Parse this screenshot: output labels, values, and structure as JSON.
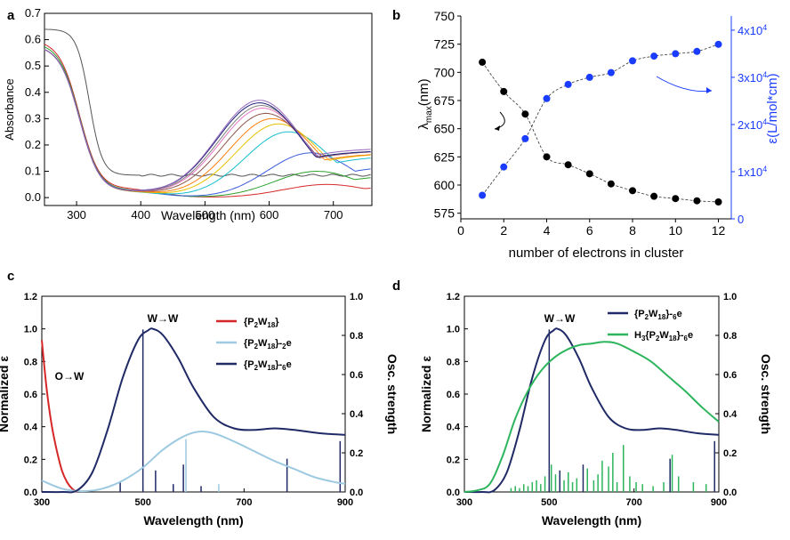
{
  "chart_data": [
    {
      "panel": "a",
      "type": "line",
      "xlabel": "Wavelength (nm)",
      "ylabel": "Absorbance",
      "xlim": [
        250,
        760
      ],
      "ylim": [
        -0.03,
        0.7
      ],
      "xticks": [
        300,
        400,
        500,
        600,
        700
      ],
      "yticks": [
        0.0,
        0.1,
        0.2,
        0.3,
        0.4,
        0.5,
        0.6,
        0.7
      ],
      "ytick_labels": [
        "0.0",
        "0.1",
        "0.2",
        "0.3",
        "0.4",
        "0.5",
        "0.6",
        "0.7"
      ],
      "grid": false,
      "series": [
        {
          "color": "#555555",
          "start": 0.64,
          "flat": 0.085,
          "peak": 0.0,
          "peak_x": 600,
          "long": 0.0
        },
        {
          "color": "#d62728",
          "start": 0.6,
          "flat": 0.06,
          "peak": 0.05,
          "peak_x": 690,
          "long": 0.05
        },
        {
          "color": "#2ca02c",
          "start": 0.59,
          "flat": 0.05,
          "peak": 0.1,
          "peak_x": 675,
          "long": 0.1
        },
        {
          "color": "#3b5bdb",
          "start": 0.58,
          "flat": 0.045,
          "peak": 0.17,
          "peak_x": 665,
          "long": 0.14
        },
        {
          "color": "#17becf",
          "start": 0.58,
          "flat": 0.04,
          "peak": 0.25,
          "peak_x": 630,
          "long": 0.18
        },
        {
          "color": "#e6c200",
          "start": 0.58,
          "flat": 0.04,
          "peak": 0.28,
          "peak_x": 615,
          "long": 0.19
        },
        {
          "color": "#ff7f0e",
          "start": 0.58,
          "flat": 0.04,
          "peak": 0.3,
          "peak_x": 605,
          "long": 0.19
        },
        {
          "color": "#8c564b",
          "start": 0.58,
          "flat": 0.04,
          "peak": 0.32,
          "peak_x": 595,
          "long": 0.2
        },
        {
          "color": "#e377c2",
          "start": 0.58,
          "flat": 0.04,
          "peak": 0.34,
          "peak_x": 590,
          "long": 0.2
        },
        {
          "color": "#7f7f7f",
          "start": 0.58,
          "flat": 0.04,
          "peak": 0.35,
          "peak_x": 588,
          "long": 0.2
        },
        {
          "color": "#1f1f7a",
          "start": 0.58,
          "flat": 0.04,
          "peak": 0.36,
          "peak_x": 585,
          "long": 0.2
        },
        {
          "color": "#9467bd",
          "start": 0.58,
          "flat": 0.04,
          "peak": 0.37,
          "peak_x": 585,
          "long": 0.21
        }
      ]
    },
    {
      "panel": "b",
      "type": "scatter",
      "xlabel": "number of electrons in cluster",
      "ylabel_left": "λmax(nm)",
      "ylabel_right": "ε(L/mol*cm)",
      "xlim": [
        0,
        12.6
      ],
      "ylim_left": [
        570,
        750
      ],
      "ylim_right": [
        0,
        43000
      ],
      "xticks": [
        0,
        2,
        4,
        6,
        8,
        10,
        12
      ],
      "yticks_left": [
        575,
        600,
        625,
        650,
        675,
        700,
        725,
        750
      ],
      "yticks_right": [
        0,
        10000,
        20000,
        30000,
        40000
      ],
      "ytick_labels_right": [
        "0",
        "1x10^4",
        "2x10^4",
        "3x10^4",
        "4x10^4"
      ],
      "series": [
        {
          "axis": "left",
          "color": "#000000",
          "x": [
            1,
            2,
            3,
            4,
            5,
            6,
            7,
            8,
            9,
            10,
            11,
            12
          ],
          "y": [
            709,
            683,
            663,
            625,
            618,
            610,
            601,
            595,
            590,
            588,
            586,
            585
          ]
        },
        {
          "axis": "right",
          "color": "#1a3cff",
          "x": [
            1,
            2,
            3,
            4,
            5,
            6,
            7,
            8,
            9,
            10,
            11,
            12
          ],
          "y": [
            5000,
            11000,
            17000,
            25500,
            28500,
            30000,
            31000,
            33500,
            34500,
            35000,
            35500,
            37000
          ]
        }
      ]
    },
    {
      "panel": "c",
      "type": "line",
      "xlabel": "Wavelength (nm)",
      "ylabel_left": "Normalized ε",
      "ylabel_right": "Osc. strength",
      "xlim": [
        300,
        900
      ],
      "ylim_left": [
        0,
        1.2
      ],
      "ylim_right": [
        0,
        1.0
      ],
      "xticks": [
        300,
        500,
        700,
        900
      ],
      "yticks_left": [
        0.0,
        0.2,
        0.4,
        0.6,
        0.8,
        1.0,
        1.2
      ],
      "yticks_right": [
        0.0,
        0.2,
        0.4,
        0.6,
        0.8,
        1.0
      ],
      "annotations": [
        "W→W",
        "O→W"
      ],
      "legend": [
        {
          "label": "{P2W18}",
          "color": "#d62728"
        },
        {
          "label": "{P2W18}-2e",
          "color": "#9ecae1"
        },
        {
          "label": "{P2W18}-6e",
          "color": "#1f2a66"
        }
      ],
      "series": [
        {
          "name": "{P2W18}",
          "color": "#d62728",
          "x": [
            300,
            310,
            320,
            330,
            340,
            350,
            360,
            370
          ],
          "y": [
            0.93,
            0.62,
            0.4,
            0.25,
            0.13,
            0.06,
            0.02,
            0.0
          ]
        },
        {
          "name": "{P2W18}-2e",
          "color": "#9ecae1",
          "x": [
            300,
            340,
            380,
            420,
            460,
            500,
            540,
            580,
            610,
            640,
            680,
            720,
            760,
            800,
            840,
            880,
            900
          ],
          "y": [
            0.07,
            0.02,
            0.005,
            0.02,
            0.07,
            0.15,
            0.26,
            0.34,
            0.37,
            0.36,
            0.31,
            0.25,
            0.19,
            0.14,
            0.09,
            0.06,
            0.05
          ]
        },
        {
          "name": "{P2W18}-6e",
          "color": "#1f2a66",
          "x": [
            300,
            340,
            370,
            400,
            430,
            460,
            490,
            510,
            520,
            540,
            570,
            600,
            640,
            680,
            720,
            760,
            800,
            850,
            900
          ],
          "y": [
            0.0,
            0.0,
            0.01,
            0.12,
            0.38,
            0.7,
            0.93,
            0.99,
            1.0,
            0.96,
            0.82,
            0.64,
            0.46,
            0.39,
            0.38,
            0.39,
            0.38,
            0.36,
            0.35
          ]
        }
      ],
      "osc_bars": [
        {
          "x": 455,
          "h": 0.05,
          "color": "#1f2a66"
        },
        {
          "x": 500,
          "h": 0.83,
          "color": "#1f2a66"
        },
        {
          "x": 525,
          "h": 0.11,
          "color": "#1f2a66"
        },
        {
          "x": 560,
          "h": 0.04,
          "color": "#1f2a66"
        },
        {
          "x": 580,
          "h": 0.14,
          "color": "#1f2a66"
        },
        {
          "x": 585,
          "h": 0.27,
          "color": "#9ecae1"
        },
        {
          "x": 615,
          "h": 0.03,
          "color": "#1f2a66"
        },
        {
          "x": 650,
          "h": 0.04,
          "color": "#9ecae1"
        },
        {
          "x": 785,
          "h": 0.17,
          "color": "#1f2a66"
        },
        {
          "x": 890,
          "h": 0.26,
          "color": "#1f2a66"
        }
      ]
    },
    {
      "panel": "d",
      "type": "line",
      "xlabel": "Wavelength (nm)",
      "ylabel_left": "Normalized ε",
      "ylabel_right": "Osc. strength",
      "xlim": [
        300,
        900
      ],
      "ylim_left": [
        0,
        1.2
      ],
      "ylim_right": [
        0,
        1.0
      ],
      "xticks": [
        300,
        500,
        700,
        900
      ],
      "yticks_left": [
        0.0,
        0.2,
        0.4,
        0.6,
        0.8,
        1.0,
        1.2
      ],
      "yticks_right": [
        0.0,
        0.2,
        0.4,
        0.6,
        0.8,
        1.0
      ],
      "annotations": [
        "W→W"
      ],
      "legend": [
        {
          "label": "{P2W18}-6e",
          "color": "#1f2a66"
        },
        {
          "label": "H3{P2W18}-6e",
          "color": "#2db55d"
        }
      ],
      "series": [
        {
          "name": "{P2W18}-6e",
          "color": "#1f2a66",
          "x": [
            300,
            340,
            370,
            400,
            430,
            460,
            490,
            510,
            520,
            540,
            570,
            600,
            640,
            680,
            720,
            760,
            800,
            850,
            900
          ],
          "y": [
            0.0,
            0.0,
            0.01,
            0.12,
            0.38,
            0.7,
            0.93,
            0.99,
            1.0,
            0.96,
            0.82,
            0.64,
            0.46,
            0.39,
            0.38,
            0.39,
            0.38,
            0.36,
            0.35
          ]
        },
        {
          "name": "H3{P2W18}-6e",
          "color": "#2db55d",
          "x": [
            300,
            330,
            360,
            390,
            420,
            450,
            480,
            510,
            540,
            570,
            600,
            630,
            660,
            700,
            740,
            780,
            820,
            860,
            900
          ],
          "y": [
            0.0,
            0.01,
            0.05,
            0.22,
            0.45,
            0.62,
            0.74,
            0.82,
            0.87,
            0.9,
            0.91,
            0.92,
            0.91,
            0.86,
            0.8,
            0.71,
            0.62,
            0.52,
            0.43
          ]
        }
      ],
      "osc_bars": [
        {
          "x": 410,
          "h": 0.02,
          "color": "#2db55d"
        },
        {
          "x": 420,
          "h": 0.03,
          "color": "#2db55d"
        },
        {
          "x": 430,
          "h": 0.02,
          "color": "#2db55d"
        },
        {
          "x": 440,
          "h": 0.04,
          "color": "#2db55d"
        },
        {
          "x": 450,
          "h": 0.03,
          "color": "#2db55d"
        },
        {
          "x": 460,
          "h": 0.05,
          "color": "#2db55d"
        },
        {
          "x": 470,
          "h": 0.06,
          "color": "#2db55d"
        },
        {
          "x": 480,
          "h": 0.04,
          "color": "#2db55d"
        },
        {
          "x": 490,
          "h": 0.08,
          "color": "#2db55d"
        },
        {
          "x": 500,
          "h": 0.83,
          "color": "#1f2a66"
        },
        {
          "x": 505,
          "h": 0.14,
          "color": "#2db55d"
        },
        {
          "x": 515,
          "h": 0.09,
          "color": "#2db55d"
        },
        {
          "x": 525,
          "h": 0.11,
          "color": "#1f2a66"
        },
        {
          "x": 535,
          "h": 0.06,
          "color": "#2db55d"
        },
        {
          "x": 545,
          "h": 0.1,
          "color": "#2db55d"
        },
        {
          "x": 555,
          "h": 0.05,
          "color": "#2db55d"
        },
        {
          "x": 565,
          "h": 0.07,
          "color": "#2db55d"
        },
        {
          "x": 580,
          "h": 0.14,
          "color": "#1f2a66"
        },
        {
          "x": 590,
          "h": 0.12,
          "color": "#2db55d"
        },
        {
          "x": 605,
          "h": 0.06,
          "color": "#2db55d"
        },
        {
          "x": 615,
          "h": 0.09,
          "color": "#2db55d"
        },
        {
          "x": 625,
          "h": 0.16,
          "color": "#2db55d"
        },
        {
          "x": 640,
          "h": 0.13,
          "color": "#2db55d"
        },
        {
          "x": 650,
          "h": 0.2,
          "color": "#2db55d"
        },
        {
          "x": 660,
          "h": 0.05,
          "color": "#2db55d"
        },
        {
          "x": 675,
          "h": 0.24,
          "color": "#2db55d"
        },
        {
          "x": 690,
          "h": 0.08,
          "color": "#2db55d"
        },
        {
          "x": 705,
          "h": 0.05,
          "color": "#2db55d"
        },
        {
          "x": 720,
          "h": 0.04,
          "color": "#2db55d"
        },
        {
          "x": 745,
          "h": 0.03,
          "color": "#2db55d"
        },
        {
          "x": 770,
          "h": 0.05,
          "color": "#2db55d"
        },
        {
          "x": 785,
          "h": 0.17,
          "color": "#1f2a66"
        },
        {
          "x": 790,
          "h": 0.19,
          "color": "#2db55d"
        },
        {
          "x": 805,
          "h": 0.08,
          "color": "#2db55d"
        },
        {
          "x": 840,
          "h": 0.05,
          "color": "#2db55d"
        },
        {
          "x": 870,
          "h": 0.04,
          "color": "#2db55d"
        },
        {
          "x": 890,
          "h": 0.26,
          "color": "#1f2a66"
        }
      ]
    }
  ],
  "panel_labels": [
    "a",
    "b",
    "c",
    "d"
  ]
}
